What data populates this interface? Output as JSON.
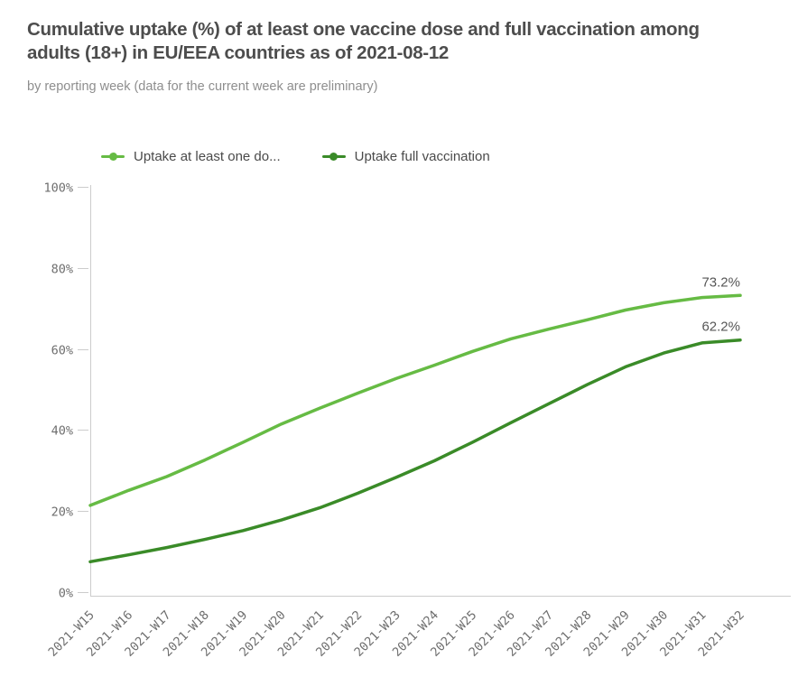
{
  "header": {
    "title": "Cumulative uptake (%) of at least one vaccine dose and full vaccination among adults (18+) in EU/EEA countries as of 2021-08-12",
    "subtitle": "by reporting week (data for the current week are preliminary)"
  },
  "colors": {
    "title_text": "#4d4d4d",
    "subtitle_text": "#8e8e8e",
    "axis_text": "#6e6e6e",
    "axis_line": "#cccccc",
    "end_label_text": "#565656",
    "series_one_dose": "#66bb44",
    "series_full_vaccination": "#3a8b28"
  },
  "chart_data": {
    "type": "line",
    "title": "Cumulative uptake (%) of at least one vaccine dose and full vaccination among adults (18+) in EU/EEA countries as of 2021-08-12",
    "subtitle": "by reporting week (data for the current week are preliminary)",
    "xlabel": "",
    "ylabel": "",
    "ylim": [
      0,
      100
    ],
    "grid": false,
    "legend_position": "top",
    "y_tick_labels": [
      "0%",
      "20%",
      "40%",
      "60%",
      "80%",
      "100%"
    ],
    "y_tick_values": [
      0,
      20,
      40,
      60,
      80,
      100
    ],
    "categories": [
      "2021-W15",
      "2021-W16",
      "2021-W17",
      "2021-W18",
      "2021-W19",
      "2021-W20",
      "2021-W21",
      "2021-W22",
      "2021-W23",
      "2021-W24",
      "2021-W25",
      "2021-W26",
      "2021-W27",
      "2021-W28",
      "2021-W29",
      "2021-W30",
      "2021-W31",
      "2021-W32"
    ],
    "series": [
      {
        "name": "Uptake at least one do...",
        "color": "#66bb44",
        "end_label": "73.2%",
        "values": [
          21.4,
          25.1,
          28.5,
          32.6,
          37.0,
          41.5,
          45.4,
          49.1,
          52.7,
          56.0,
          59.4,
          62.5,
          64.9,
          67.2,
          69.6,
          71.4,
          72.7,
          73.2
        ]
      },
      {
        "name": "Uptake full vaccination",
        "color": "#3a8b28",
        "end_label": "62.2%",
        "values": [
          7.5,
          9.2,
          11.0,
          13.0,
          15.2,
          17.8,
          20.8,
          24.4,
          28.3,
          32.4,
          37.0,
          41.8,
          46.5,
          51.2,
          55.6,
          59.0,
          61.5,
          62.2
        ]
      }
    ]
  }
}
